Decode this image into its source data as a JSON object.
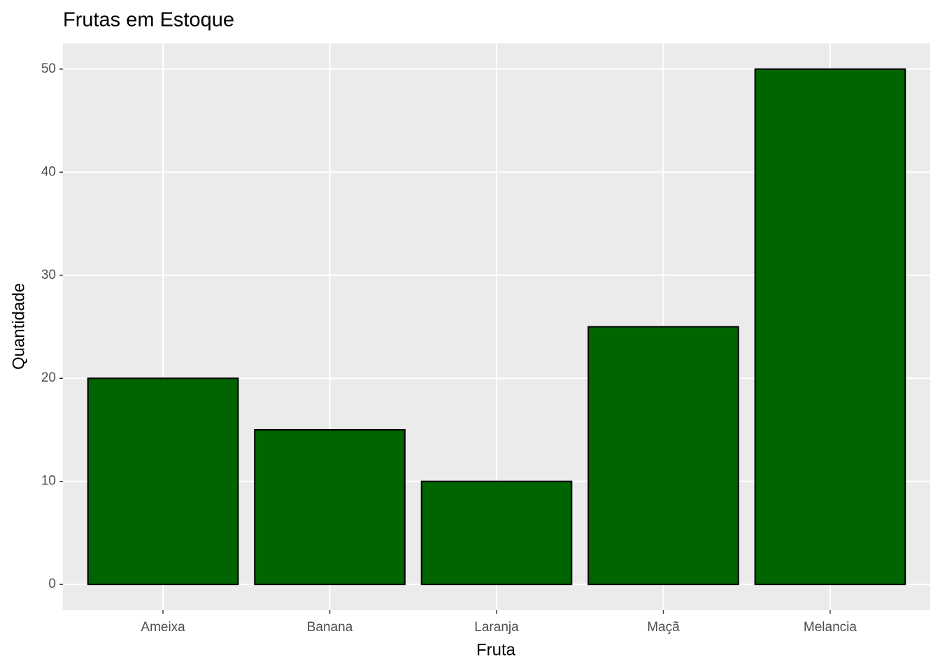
{
  "chart_data": {
    "type": "bar",
    "title": "Frutas em Estoque",
    "x_label": "Fruta",
    "y_label": "Quantidade",
    "categories": [
      "Ameixa",
      "Banana",
      "Laranja",
      "Maçã",
      "Melancia"
    ],
    "values": [
      20,
      15,
      10,
      25,
      50
    ],
    "color": "#006400",
    "ylim": [
      -2.5,
      52.5
    ],
    "yticks": [
      0,
      10,
      20,
      30,
      40,
      50
    ],
    "grid": true
  }
}
